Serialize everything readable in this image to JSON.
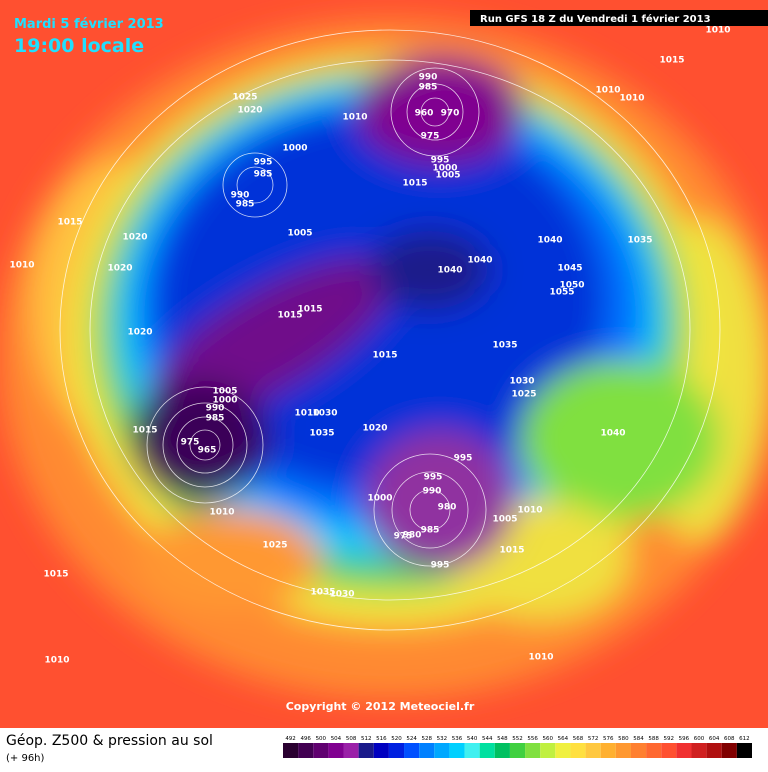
{
  "header": {
    "date": "Mardi 5 février 2013",
    "time": "19:00 locale",
    "run": "Run GFS 18 Z du Vendredi 1 février 2013"
  },
  "copyright": "Copyright © 2012 Meteociel.fr",
  "footer": {
    "title": "Géop. Z500 & pression au sol",
    "lead": "(+ 96h)"
  },
  "isobar_labels": [
    "1010",
    "1015",
    "1010",
    "1010",
    "1025",
    "1020",
    "1010",
    "990",
    "985",
    "960",
    "970",
    "975",
    "1000",
    "995",
    "985",
    "990",
    "985",
    "995",
    "1000",
    "1005",
    "1015",
    "1005",
    "1040",
    "1035",
    "1040",
    "1040",
    "1045",
    "1050",
    "1055",
    "1015",
    "1020",
    "1010",
    "1020",
    "1020",
    "1015",
    "1015",
    "1015",
    "1035",
    "1030",
    "1025",
    "1005",
    "1000",
    "990",
    "985",
    "975",
    "965",
    "1015",
    "1030",
    "1010",
    "1035",
    "1020",
    "1040",
    "995",
    "995",
    "990",
    "980",
    "1000",
    "1010",
    "1005",
    "985",
    "980",
    "975",
    "1015",
    "995",
    "1010",
    "1025",
    "1015",
    "1035",
    "1030",
    "1010",
    "1010"
  ],
  "legend": {
    "values": [
      492,
      496,
      500,
      504,
      508,
      512,
      516,
      520,
      524,
      528,
      532,
      536,
      540,
      544,
      548,
      552,
      556,
      560,
      564,
      568,
      572,
      576,
      580,
      584,
      588,
      592,
      596,
      600,
      604,
      608,
      612
    ],
    "colors": [
      "#2a0030",
      "#420052",
      "#600070",
      "#800090",
      "#9a20a8",
      "#1a1a8a",
      "#0000c0",
      "#0020e0",
      "#0050ff",
      "#0080ff",
      "#00a8ff",
      "#00d0ff",
      "#40f0f0",
      "#00e0a0",
      "#00c060",
      "#40d040",
      "#80e040",
      "#c0f040",
      "#f0f040",
      "#ffe040",
      "#ffc840",
      "#ffb030",
      "#ff9830",
      "#ff8030",
      "#ff6830",
      "#ff5030",
      "#f03030",
      "#d02020",
      "#b01010",
      "#800000",
      "#000000"
    ]
  }
}
